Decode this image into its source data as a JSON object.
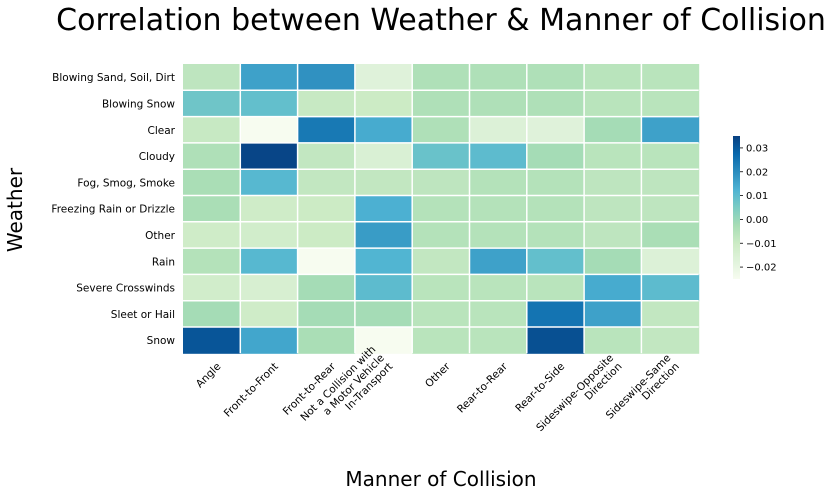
{
  "chart_data": {
    "type": "heatmap",
    "title": "Correlation between Weather & Manner of Collision",
    "xlabel": "Manner of Collision",
    "ylabel": "Weather",
    "x_categories": [
      "Angle",
      "Front-to-Front",
      "Front-to-Rear",
      "Not a Collision with\na Motor Vehicle\nIn-Transport",
      "Other",
      "Rear-to-Rear",
      "Rear-to-Side",
      "Sideswipe-Opposite\nDirection",
      "Sideswipe-Same\nDirection"
    ],
    "y_categories": [
      "Blowing Sand, Soil, Dirt",
      "Blowing Snow",
      "Clear",
      "Cloudy",
      "Fog, Smog, Smoke",
      "Freezing Rain or Drizzle",
      "Other",
      "Rain",
      "Severe Crosswinds",
      "Sleet or Hail",
      "Snow"
    ],
    "values": [
      [
        -0.007,
        0.016,
        0.019,
        -0.017,
        -0.004,
        -0.004,
        -0.004,
        -0.006,
        -0.006
      ],
      [
        0.007,
        0.009,
        -0.009,
        -0.01,
        -0.004,
        -0.004,
        -0.004,
        -0.006,
        -0.006
      ],
      [
        -0.009,
        -0.025,
        0.024,
        0.014,
        -0.004,
        -0.016,
        -0.017,
        -0.002,
        0.016
      ],
      [
        -0.004,
        0.034,
        -0.008,
        -0.015,
        0.008,
        0.01,
        -0.002,
        -0.006,
        -0.006
      ],
      [
        -0.003,
        0.011,
        -0.008,
        -0.008,
        -0.007,
        -0.005,
        -0.005,
        -0.007,
        -0.007
      ],
      [
        -0.003,
        -0.011,
        -0.01,
        0.013,
        -0.005,
        -0.005,
        -0.005,
        -0.007,
        -0.007
      ],
      [
        -0.011,
        -0.012,
        -0.01,
        0.017,
        -0.005,
        -0.005,
        -0.005,
        -0.007,
        -0.003
      ],
      [
        -0.005,
        0.011,
        -0.025,
        0.012,
        -0.008,
        0.016,
        0.009,
        -0.002,
        -0.016
      ],
      [
        -0.012,
        -0.014,
        -0.002,
        0.01,
        -0.006,
        -0.006,
        -0.006,
        0.014,
        0.01
      ],
      [
        -0.002,
        -0.011,
        -0.002,
        -0.002,
        -0.006,
        -0.006,
        0.025,
        0.016,
        -0.008
      ],
      [
        0.031,
        0.015,
        -0.003,
        -0.025,
        -0.006,
        -0.006,
        0.032,
        -0.006,
        -0.008
      ]
    ],
    "vmin": -0.025,
    "vmax": 0.035,
    "colorbar_ticks": [
      0.03,
      0.02,
      0.01,
      0.0,
      -0.01,
      -0.02
    ],
    "colorbar_tick_labels": [
      "0.03",
      "0.02",
      "0.01",
      "0.00",
      "−0.01",
      "−0.02"
    ],
    "colormap": "GnBu",
    "colormap_stops": [
      "#f7fcf0",
      "#e0f3db",
      "#ccebc5",
      "#a8ddb5",
      "#7bccc4",
      "#4eb3d3",
      "#2b8cbe",
      "#0868ac",
      "#084081"
    ],
    "grid_line_color": "#ffffff",
    "legend": "colorbar-right"
  }
}
